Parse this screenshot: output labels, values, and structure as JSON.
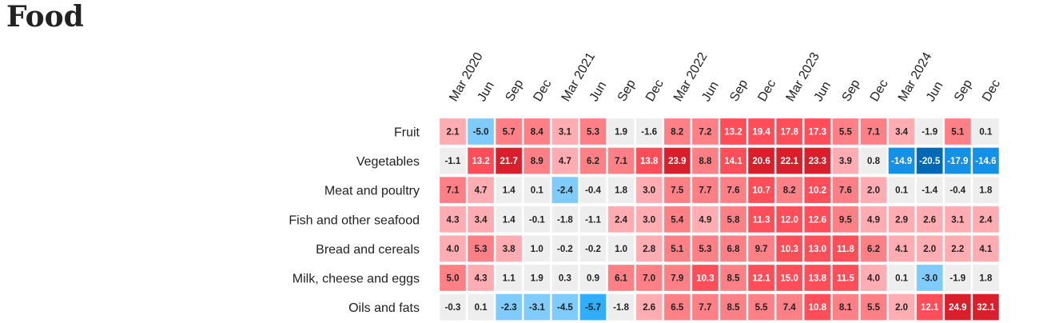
{
  "chart_data": {
    "type": "heatmap",
    "title": "Food",
    "columns": [
      "Mar 2020",
      "Jun",
      "Sep",
      "Dec",
      "Mar 2021",
      "Jun",
      "Sep",
      "Dec",
      "Mar 2022",
      "Jun",
      "Sep",
      "Dec",
      "Mar 2023",
      "Jun",
      "Sep",
      "Dec",
      "Mar 2024",
      "Jun",
      "Sep",
      "Dec"
    ],
    "rows": [
      "Fruit",
      "Vegetables",
      "Meat and poultry",
      "Fish and other seafood",
      "Bread and cereals",
      "Milk, cheese and eggs",
      "Oils and fats"
    ],
    "values": [
      [
        2.1,
        -5.0,
        5.7,
        8.4,
        3.1,
        5.3,
        1.9,
        -1.6,
        8.2,
        7.2,
        13.2,
        19.4,
        17.8,
        17.3,
        5.5,
        7.1,
        3.4,
        -1.9,
        5.1,
        0.1
      ],
      [
        -1.1,
        13.2,
        21.7,
        8.9,
        4.7,
        6.2,
        7.1,
        13.8,
        23.9,
        8.8,
        14.1,
        20.6,
        22.1,
        23.3,
        3.9,
        0.8,
        -14.9,
        -20.5,
        -17.9,
        -14.6
      ],
      [
        7.1,
        4.7,
        1.4,
        0.1,
        -2.4,
        -0.4,
        1.8,
        3.0,
        7.5,
        7.7,
        7.6,
        10.7,
        8.2,
        10.2,
        7.6,
        2.0,
        0.1,
        -1.4,
        -0.4,
        1.8
      ],
      [
        4.3,
        3.4,
        1.4,
        -0.1,
        -1.8,
        -1.1,
        2.4,
        3.0,
        5.4,
        4.9,
        5.8,
        11.3,
        12.0,
        12.6,
        9.5,
        4.9,
        2.9,
        2.6,
        3.1,
        2.4
      ],
      [
        4.0,
        5.3,
        3.8,
        1.0,
        -0.2,
        -0.2,
        1.0,
        2.8,
        5.1,
        5.3,
        6.8,
        9.7,
        10.3,
        13.0,
        11.8,
        6.2,
        4.1,
        2.0,
        2.2,
        4.1
      ],
      [
        5.0,
        4.3,
        1.1,
        1.9,
        0.3,
        0.9,
        6.1,
        7.0,
        7.9,
        10.3,
        8.5,
        12.1,
        15.0,
        13.8,
        11.5,
        4.0,
        0.1,
        -3.0,
        -1.9,
        1.8
      ],
      [
        -0.3,
        0.1,
        -2.3,
        -3.1,
        -4.5,
        -5.7,
        -1.8,
        2.6,
        6.5,
        7.7,
        8.5,
        5.5,
        7.4,
        10.8,
        8.1,
        5.5,
        2.0,
        12.1,
        24.9,
        32.1
      ]
    ],
    "color_scale": {
      "ge_20": "#d81f2b",
      "10_to_20": "#fd4e5a",
      "5_to_10": "#fe8087",
      "2_to_5": "#ffadb2",
      "-2_to_2": "#eeeeee",
      "-5_to_-2": "#7fcbfc",
      "-10_to_-5": "#30aefb",
      "-20_to_-10": "#1490e6",
      "lt_-20": "#0068b4"
    }
  }
}
